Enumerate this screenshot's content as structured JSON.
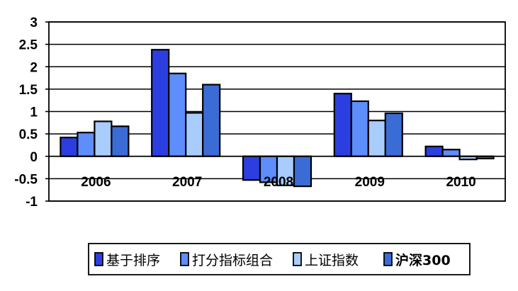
{
  "chart_data": {
    "type": "bar",
    "categories": [
      "2006",
      "2007",
      "2008",
      "2009",
      "2010"
    ],
    "series": [
      {
        "name": "基于排序",
        "color": "#2b3fe0",
        "values": [
          0.42,
          2.38,
          -0.53,
          1.4,
          0.22
        ]
      },
      {
        "name": "打分指标组合",
        "color": "#5e8dfc",
        "values": [
          0.53,
          1.85,
          -0.58,
          1.23,
          0.15
        ]
      },
      {
        "name": "上证指数",
        "color": "#a8ccfb",
        "values": [
          0.78,
          0.97,
          -0.65,
          0.8,
          -0.07
        ]
      },
      {
        "name": "沪深300",
        "color": "#3b6cd6",
        "values": [
          0.67,
          1.6,
          -0.67,
          0.96,
          -0.05
        ]
      }
    ],
    "ylim": [
      -1,
      3
    ],
    "yticks": [
      "3",
      "2.5",
      "2",
      "1.5",
      "1",
      "0.5",
      "0",
      "-0.5",
      "-1"
    ],
    "ytick_values": [
      3,
      2.5,
      2,
      1.5,
      1,
      0.5,
      0,
      -0.5,
      -1
    ],
    "grid": true,
    "legend": "bottom",
    "title": "",
    "xlabel": "",
    "ylabel": ""
  }
}
